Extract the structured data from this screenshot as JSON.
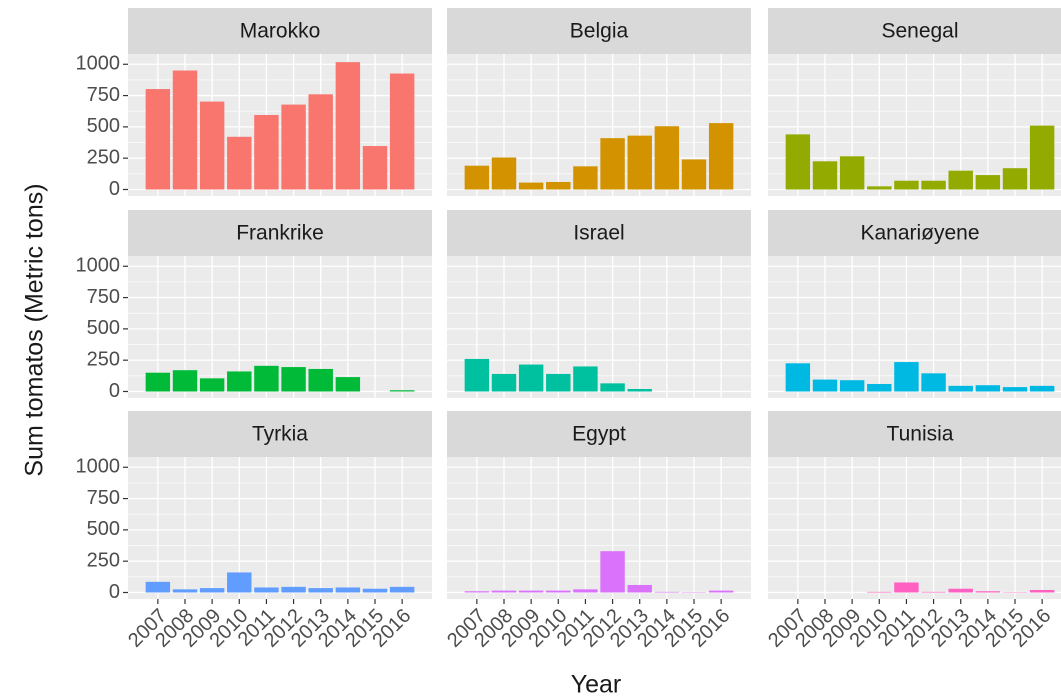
{
  "chart_data": {
    "type": "bar",
    "x_label": "Year",
    "y_label": "Sum tomatos (Metric tons)",
    "categories": [
      "2007",
      "2008",
      "2009",
      "2010",
      "2011",
      "2012",
      "2013",
      "2014",
      "2015",
      "2016"
    ],
    "ylim": [
      -52,
      1082
    ],
    "yticks": [
      0,
      250,
      500,
      750,
      1000
    ],
    "grid": true,
    "facets": [
      {
        "title": "Marokko",
        "color": "#F8766D",
        "values": [
          802,
          950,
          702,
          421,
          595,
          678,
          760,
          1017,
          347,
          926
        ]
      },
      {
        "title": "Belgia",
        "color": "#D39200",
        "values": [
          190,
          255,
          55,
          60,
          185,
          410,
          430,
          505,
          240,
          530
        ]
      },
      {
        "title": "Senegal",
        "color": "#93AA00",
        "values": [
          440,
          225,
          265,
          25,
          70,
          70,
          150,
          115,
          170,
          510
        ]
      },
      {
        "title": "Frankrike",
        "color": "#00BA38",
        "values": [
          150,
          170,
          105,
          160,
          205,
          195,
          180,
          115,
          null,
          10
        ]
      },
      {
        "title": "Israel",
        "color": "#00C19F",
        "values": [
          260,
          140,
          215,
          140,
          200,
          65,
          20,
          null,
          null,
          null
        ]
      },
      {
        "title": "Kanariøyene",
        "color": "#00B9E3",
        "values": [
          225,
          95,
          90,
          60,
          235,
          145,
          45,
          50,
          35,
          45
        ]
      },
      {
        "title": "Tyrkia",
        "color": "#619CFF",
        "values": [
          85,
          25,
          35,
          160,
          40,
          45,
          35,
          40,
          30,
          45
        ]
      },
      {
        "title": "Egypt",
        "color": "#DB72FB",
        "values": [
          10,
          15,
          15,
          15,
          25,
          330,
          60,
          5,
          3,
          15
        ]
      },
      {
        "title": "Tunisia",
        "color": "#FF61C3",
        "values": [
          null,
          null,
          null,
          5,
          80,
          5,
          30,
          10,
          3,
          20
        ]
      }
    ]
  }
}
